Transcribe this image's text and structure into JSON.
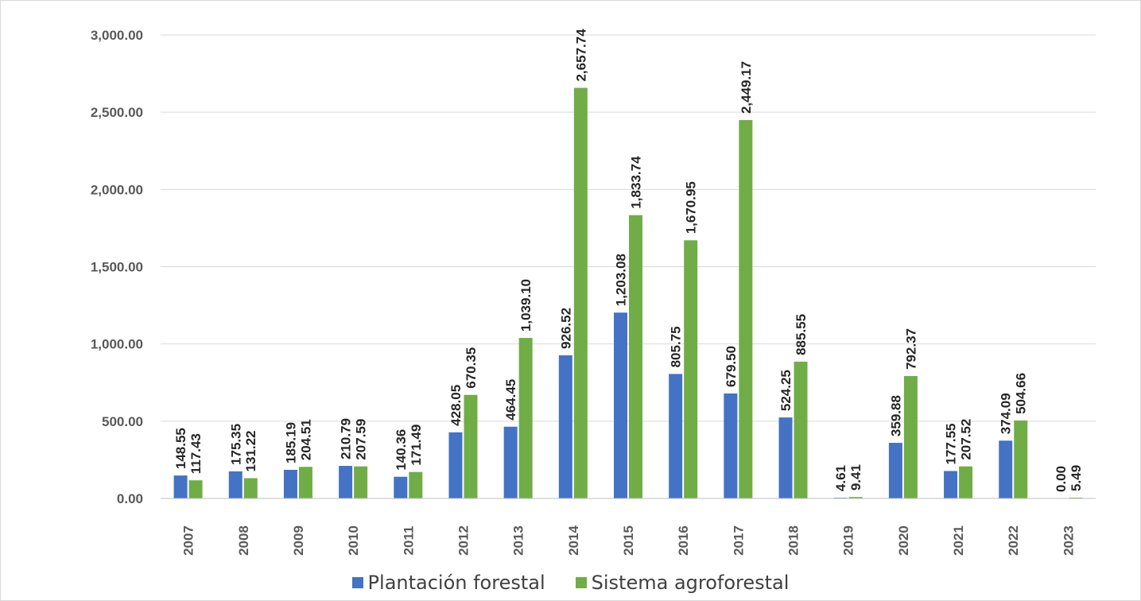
{
  "chart_data": {
    "type": "bar",
    "categories": [
      "2007",
      "2008",
      "2009",
      "2010",
      "2011",
      "2012",
      "2013",
      "2014",
      "2015",
      "2016",
      "2017",
      "2018",
      "2019",
      "2020",
      "2021",
      "2022",
      "2023"
    ],
    "series": [
      {
        "name": "Plantación forestal",
        "color": "#4472c4",
        "values": [
          148.55,
          175.35,
          185.19,
          210.79,
          140.36,
          428.05,
          464.45,
          926.52,
          1203.08,
          805.75,
          679.5,
          524.25,
          4.61,
          359.88,
          177.55,
          374.09,
          0.0
        ],
        "labels": [
          "148.55",
          "175.35",
          "185.19",
          "210.79",
          "140.36",
          "428.05",
          "464.45",
          "926.52",
          "1,203.08",
          "805.75",
          "679.50",
          "524.25",
          "4.61",
          "359.88",
          "177.55",
          "374.09",
          "0.00"
        ]
      },
      {
        "name": "Sistema agroforestal",
        "color": "#70ad47",
        "values": [
          117.43,
          131.22,
          204.51,
          207.59,
          171.49,
          670.35,
          1039.1,
          2657.74,
          1833.74,
          1670.95,
          2449.17,
          885.55,
          9.41,
          792.37,
          207.52,
          504.66,
          5.49
        ],
        "labels": [
          "117.43",
          "131.22",
          "204.51",
          "207.59",
          "171.49",
          "670.35",
          "1,039.10",
          "2,657.74",
          "1,833.74",
          "1,670.95",
          "2,449.17",
          "885.55",
          "9.41",
          "792.37",
          "207.52",
          "504.66",
          "5.49"
        ]
      }
    ],
    "yticks": [
      "0.00",
      "500.00",
      "1,000.00",
      "1,500.00",
      "2,000.00",
      "2,500.00",
      "3,000.00"
    ],
    "ylim": [
      0,
      3000
    ],
    "grid": true,
    "legend_position": "bottom",
    "title": "",
    "xlabel": "",
    "ylabel": ""
  }
}
